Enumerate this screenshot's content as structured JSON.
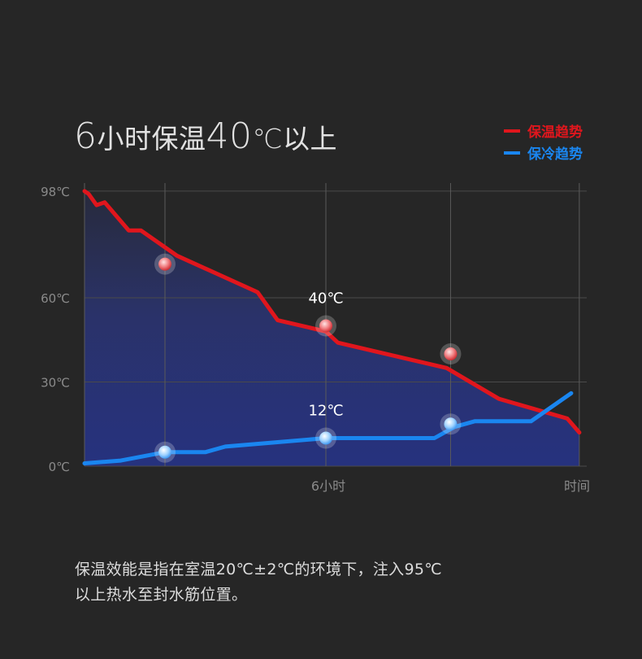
{
  "title": {
    "num1": "6",
    "text1": "小时保温",
    "num2": "40",
    "text2": "℃以上"
  },
  "legend": [
    {
      "label": "保温趋势",
      "color": "#e0161d"
    },
    {
      "label": "保冷趋势",
      "color": "#1a86f0"
    }
  ],
  "description": [
    "保温效能是指在室温20℃±2℃的环境下，注入95℃",
    "以上热水至封水筋位置。"
  ],
  "chart_data": {
    "type": "line",
    "ylim": [
      0,
      98
    ],
    "xlim": [
      0,
      12
    ],
    "y_tick_labels": [
      {
        "value": 0,
        "label": "0℃"
      },
      {
        "value": 30,
        "label": "30℃"
      },
      {
        "value": 60,
        "label": "60℃"
      },
      {
        "value": 98,
        "label": "98℃"
      }
    ],
    "x_tick_labels": [
      {
        "value": 6,
        "label": "6小时"
      },
      {
        "value": 12,
        "label": "时间"
      }
    ],
    "series": [
      {
        "name": "保温趋势",
        "color": "#e0161d",
        "points": [
          [
            0,
            98
          ],
          [
            0.1,
            97
          ],
          [
            0.3,
            93
          ],
          [
            0.5,
            94
          ],
          [
            1.1,
            84
          ],
          [
            1.4,
            84
          ],
          [
            2,
            78
          ],
          [
            2.3,
            75
          ],
          [
            4.3,
            62
          ],
          [
            4.8,
            52
          ],
          [
            6,
            48
          ],
          [
            6.3,
            44
          ],
          [
            9,
            35
          ],
          [
            10.3,
            24
          ],
          [
            12,
            17
          ],
          [
            12.3,
            12
          ]
        ]
      },
      {
        "name": "保冷趋势",
        "color": "#1a86f0",
        "points": [
          [
            0,
            1
          ],
          [
            0.9,
            2
          ],
          [
            2,
            5
          ],
          [
            3,
            5
          ],
          [
            3.5,
            7
          ],
          [
            6,
            10
          ],
          [
            8.7,
            10
          ],
          [
            9.2,
            14
          ],
          [
            9.7,
            16
          ],
          [
            11.1,
            16
          ],
          [
            12.1,
            26
          ]
        ]
      }
    ],
    "markers": [
      {
        "series": 0,
        "x": 2,
        "y": 72
      },
      {
        "series": 0,
        "x": 6,
        "y": 50
      },
      {
        "series": 0,
        "x": 9.1,
        "y": 40
      },
      {
        "series": 1,
        "x": 2,
        "y": 5
      },
      {
        "series": 1,
        "x": 6,
        "y": 10
      },
      {
        "series": 1,
        "x": 9.1,
        "y": 15
      }
    ],
    "annotations": [
      {
        "text": "40℃",
        "x": 6,
        "y": 50
      },
      {
        "text": "12℃",
        "x": 6,
        "y": 10
      }
    ]
  }
}
